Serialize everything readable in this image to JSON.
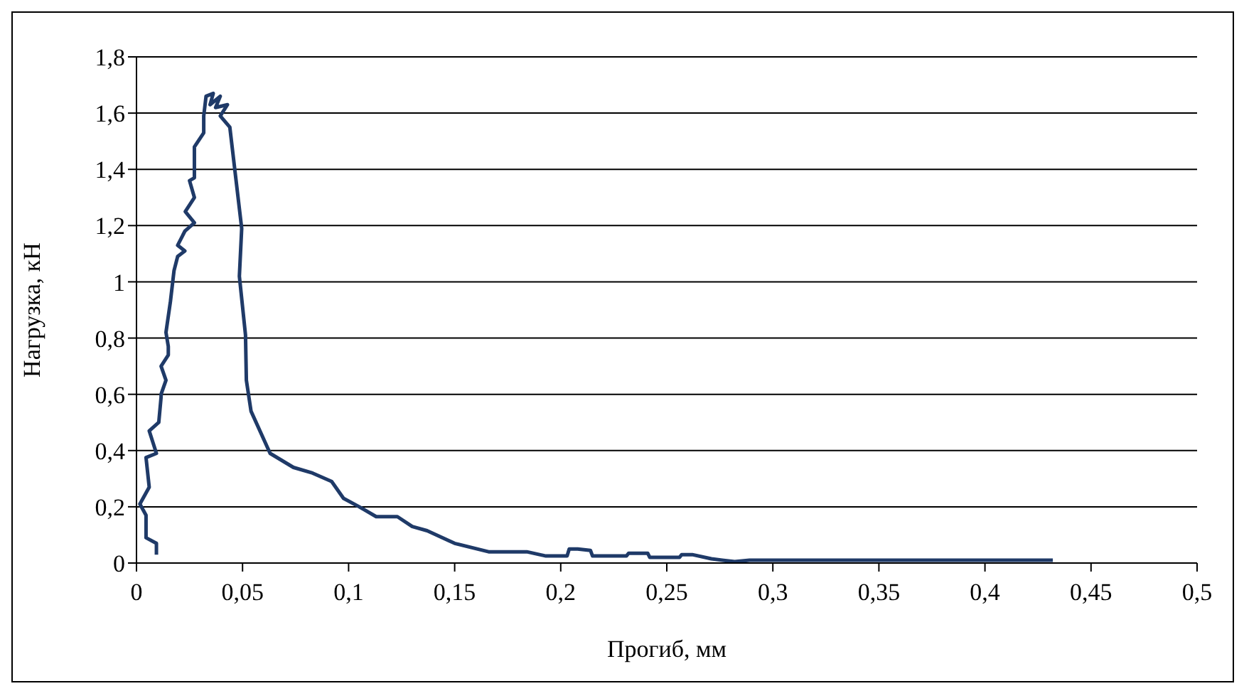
{
  "chart_data": {
    "type": "line",
    "xlabel": "Прогиб, мм",
    "ylabel": "Нагрузка, кН",
    "xlim": [
      0,
      0.5
    ],
    "ylim": [
      0,
      1.8
    ],
    "xticks": [
      0,
      {
        "value": 0.05,
        "label": "0,05"
      },
      {
        "value": 0.1,
        "label": "0,1"
      },
      {
        "value": 0.15,
        "label": "0,15"
      },
      {
        "value": 0.2,
        "label": "0,2"
      },
      {
        "value": 0.25,
        "label": "0,25"
      },
      {
        "value": 0.3,
        "label": "0,3"
      },
      {
        "value": 0.35,
        "label": "0,35"
      },
      {
        "value": 0.4,
        "label": "0,4"
      },
      {
        "value": 0.45,
        "label": "0,45"
      },
      {
        "value": 0.5,
        "label": "0,5"
      }
    ],
    "yticks": [
      0,
      {
        "value": 0.2,
        "label": "0,2"
      },
      {
        "value": 0.4,
        "label": "0,4"
      },
      {
        "value": 0.6,
        "label": "0,6"
      },
      {
        "value": 0.8,
        "label": "0,8"
      },
      1,
      {
        "value": 1.2,
        "label": "1,2"
      },
      {
        "value": 1.4,
        "label": "1,4"
      },
      {
        "value": 1.6,
        "label": "1,6"
      },
      {
        "value": 1.8,
        "label": "1,8"
      }
    ],
    "grid": "y",
    "marker": "none",
    "line_style": "solid",
    "series": [
      {
        "color": "#1f3a68",
        "x": [
          0.0094,
          0.0094,
          0.0045,
          0.0045,
          0.0016,
          0.006,
          0.0045,
          0.0094,
          0.006,
          0.0105,
          0.0116,
          0.0116,
          0.0139,
          0.0116,
          0.015,
          0.015,
          0.0139,
          0.016,
          0.0177,
          0.0194,
          0.0228,
          0.0194,
          0.0228,
          0.0273,
          0.023,
          0.0273,
          0.025,
          0.0273,
          0.0273,
          0.0317,
          0.0317,
          0.0328,
          0.0362,
          0.0347,
          0.0395,
          0.0373,
          0.0429,
          0.0395,
          0.044,
          0.0496,
          0.0485,
          0.0514,
          0.0518,
          0.054,
          0.063,
          0.074,
          0.083,
          0.092,
          0.0976,
          0.105,
          0.113,
          0.123,
          0.13,
          0.137,
          0.15,
          0.166,
          0.184,
          0.193,
          0.203,
          0.204,
          0.208,
          0.214,
          0.215,
          0.231,
          0.232,
          0.241,
          0.242,
          0.256,
          0.257,
          0.262,
          0.271,
          0.282,
          0.289,
          0.432
        ],
        "values": [
          0.03,
          0.07,
          0.09,
          0.17,
          0.21,
          0.27,
          0.375,
          0.39,
          0.47,
          0.5,
          0.59,
          0.6,
          0.65,
          0.7,
          0.74,
          0.77,
          0.82,
          0.93,
          1.04,
          1.09,
          1.11,
          1.13,
          1.18,
          1.21,
          1.25,
          1.3,
          1.36,
          1.37,
          1.48,
          1.53,
          1.59,
          1.66,
          1.67,
          1.63,
          1.66,
          1.62,
          1.63,
          1.59,
          1.55,
          1.19,
          1.02,
          0.81,
          0.65,
          0.54,
          0.39,
          0.34,
          0.32,
          0.29,
          0.23,
          0.2,
          0.165,
          0.165,
          0.13,
          0.115,
          0.07,
          0.04,
          0.04,
          0.025,
          0.025,
          0.05,
          0.05,
          0.045,
          0.025,
          0.025,
          0.035,
          0.035,
          0.02,
          0.02,
          0.03,
          0.03,
          0.015,
          0.005,
          0.01,
          0.01
        ]
      }
    ]
  }
}
